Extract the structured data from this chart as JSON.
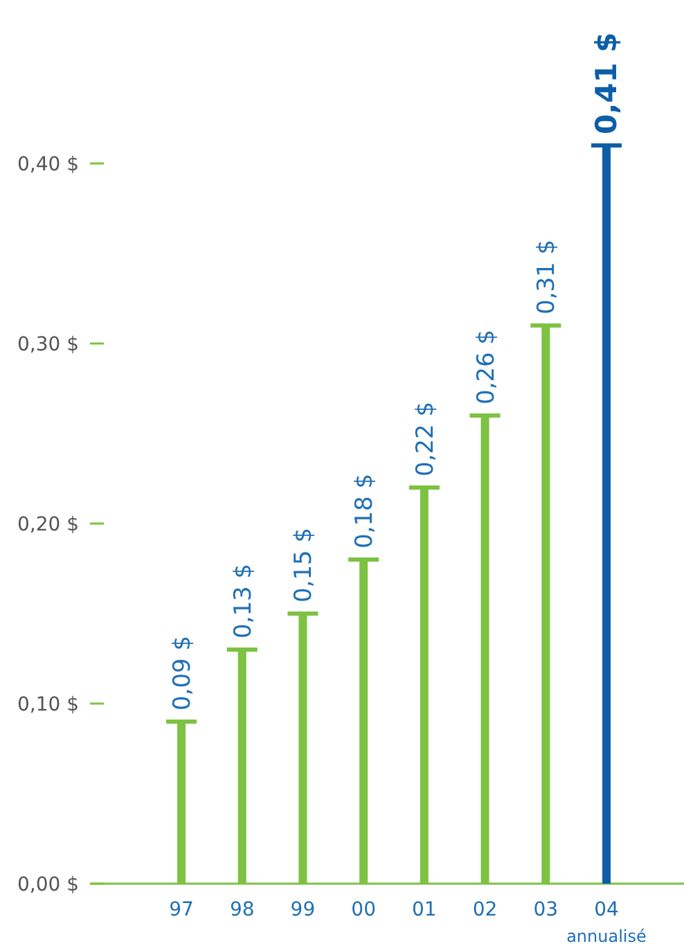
{
  "chart_data": {
    "type": "bar",
    "categories": [
      "97",
      "98",
      "99",
      "00",
      "01",
      "02",
      "03",
      "04"
    ],
    "values": [
      0.09,
      0.13,
      0.15,
      0.18,
      0.22,
      0.26,
      0.31,
      0.41
    ],
    "colors": [
      "#7dc242",
      "#7dc242",
      "#7dc242",
      "#7dc242",
      "#7dc242",
      "#7dc242",
      "#7dc242",
      "#0d5ea6"
    ],
    "value_labels": [
      "0,09 $",
      "0,13 $",
      "0,15 $",
      "0,18 $",
      "0,22 $",
      "0,26 $",
      "0,31 $",
      "0,41 $"
    ],
    "yticks": [
      {
        "value": 0,
        "label": "0,00 $"
      },
      {
        "value": 0.1,
        "label": "0,10 $"
      },
      {
        "value": 0.2,
        "label": "0,20 $"
      },
      {
        "value": 0.3,
        "label": "0,30 $"
      },
      {
        "value": 0.4,
        "label": "0,40 $"
      }
    ],
    "ylim": [
      0,
      0.41
    ],
    "annotations": [
      "annualisé"
    ],
    "grid": false
  }
}
